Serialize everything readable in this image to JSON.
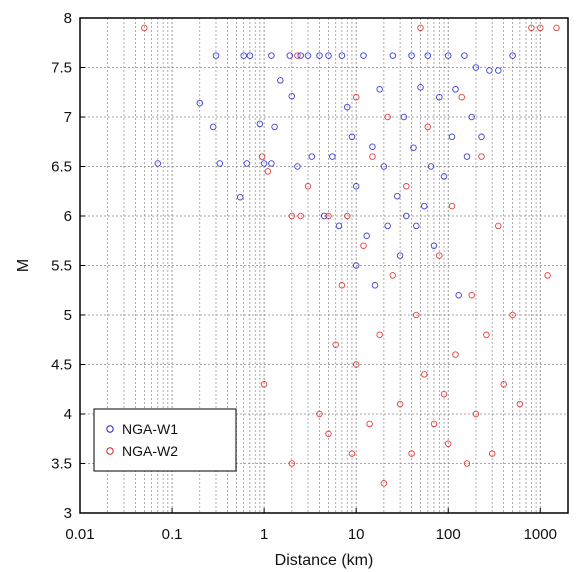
{
  "chart_data": {
    "type": "scatter",
    "xlabel": "Distance (km)",
    "ylabel": "M",
    "x_scale": "log",
    "xlim": [
      0.01,
      2000
    ],
    "ylim": [
      3,
      8
    ],
    "x_ticks": [
      {
        "value": 0.01,
        "label": "0.01"
      },
      {
        "value": 0.1,
        "label": "0.1"
      },
      {
        "value": 1,
        "label": "1"
      },
      {
        "value": 10,
        "label": "10"
      },
      {
        "value": 100,
        "label": "100"
      },
      {
        "value": 1000,
        "label": "1000"
      }
    ],
    "y_ticks": [
      {
        "value": 3,
        "label": "3"
      },
      {
        "value": 3.5,
        "label": "3.5"
      },
      {
        "value": 4,
        "label": "4"
      },
      {
        "value": 4.5,
        "label": "4.5"
      },
      {
        "value": 5,
        "label": "5"
      },
      {
        "value": 5.5,
        "label": "5.5"
      },
      {
        "value": 6,
        "label": "6"
      },
      {
        "value": 6.5,
        "label": "6.5"
      },
      {
        "value": 7,
        "label": "7"
      },
      {
        "value": 7.5,
        "label": "7.5"
      },
      {
        "value": 8,
        "label": "8"
      }
    ],
    "grid": true,
    "legend_position": "lower-left",
    "series": [
      {
        "name": "NGA-W1",
        "color": "#2020d0",
        "marker": "open-circle",
        "points": [
          [
            0.07,
            6.53
          ],
          [
            0.2,
            7.14
          ],
          [
            0.28,
            6.9
          ],
          [
            0.3,
            7.62
          ],
          [
            0.33,
            6.53
          ],
          [
            0.55,
            6.19
          ],
          [
            0.6,
            7.62
          ],
          [
            0.65,
            6.53
          ],
          [
            0.7,
            7.62
          ],
          [
            0.9,
            6.93
          ],
          [
            1.0,
            6.53
          ],
          [
            1.2,
            6.53
          ],
          [
            1.2,
            7.62
          ],
          [
            1.3,
            6.9
          ],
          [
            1.5,
            7.37
          ],
          [
            1.9,
            7.62
          ],
          [
            2.0,
            7.21
          ],
          [
            2.3,
            6.5
          ],
          [
            2.5,
            7.62
          ],
          [
            3.0,
            7.62
          ],
          [
            3.3,
            6.6
          ],
          [
            4.0,
            7.62
          ],
          [
            4.5,
            6.0
          ],
          [
            5.0,
            7.62
          ],
          [
            5.5,
            6.6
          ],
          [
            6.5,
            5.9
          ],
          [
            7.0,
            7.62
          ],
          [
            8.0,
            7.1
          ],
          [
            9.0,
            6.8
          ],
          [
            10.0,
            5.5
          ],
          [
            10.0,
            6.3
          ],
          [
            12.0,
            7.62
          ],
          [
            13.0,
            5.8
          ],
          [
            15.0,
            6.7
          ],
          [
            16.0,
            5.3
          ],
          [
            18.0,
            7.28
          ],
          [
            20.0,
            6.5
          ],
          [
            22.0,
            5.9
          ],
          [
            25.0,
            7.62
          ],
          [
            28.0,
            6.2
          ],
          [
            30.0,
            5.6
          ],
          [
            33.0,
            7.0
          ],
          [
            35.0,
            6.0
          ],
          [
            40.0,
            7.62
          ],
          [
            42.0,
            6.69
          ],
          [
            45.0,
            5.9
          ],
          [
            50.0,
            7.3
          ],
          [
            55.0,
            6.1
          ],
          [
            60.0,
            7.62
          ],
          [
            65.0,
            6.5
          ],
          [
            70.0,
            5.7
          ],
          [
            80.0,
            7.2
          ],
          [
            90.0,
            6.4
          ],
          [
            100.0,
            7.62
          ],
          [
            110.0,
            6.8
          ],
          [
            120.0,
            7.28
          ],
          [
            130.0,
            5.2
          ],
          [
            150.0,
            7.62
          ],
          [
            160.0,
            6.6
          ],
          [
            180.0,
            7.0
          ],
          [
            200.0,
            7.5
          ],
          [
            230.0,
            6.8
          ],
          [
            280.0,
            7.47
          ],
          [
            350.0,
            7.47
          ],
          [
            500.0,
            7.62
          ]
        ]
      },
      {
        "name": "NGA-W2",
        "color": "#e02020",
        "marker": "open-circle",
        "points": [
          [
            0.05,
            7.9
          ],
          [
            0.95,
            6.6
          ],
          [
            1.0,
            4.3
          ],
          [
            1.1,
            6.45
          ],
          [
            2.0,
            3.5
          ],
          [
            2.0,
            6.0
          ],
          [
            2.3,
            7.62
          ],
          [
            2.5,
            6.0
          ],
          [
            3.0,
            6.3
          ],
          [
            4.0,
            4.0
          ],
          [
            5.0,
            3.8
          ],
          [
            5.0,
            6.0
          ],
          [
            6.0,
            4.7
          ],
          [
            7.0,
            5.3
          ],
          [
            8.0,
            6.0
          ],
          [
            9.0,
            3.6
          ],
          [
            10.0,
            4.5
          ],
          [
            10.0,
            7.2
          ],
          [
            12.0,
            5.7
          ],
          [
            14.0,
            3.9
          ],
          [
            15.0,
            6.6
          ],
          [
            18.0,
            4.8
          ],
          [
            20.0,
            3.3
          ],
          [
            22.0,
            7.0
          ],
          [
            25.0,
            5.4
          ],
          [
            30.0,
            4.1
          ],
          [
            35.0,
            6.3
          ],
          [
            40.0,
            3.6
          ],
          [
            45.0,
            5.0
          ],
          [
            50.0,
            7.9
          ],
          [
            55.0,
            4.4
          ],
          [
            60.0,
            6.9
          ],
          [
            70.0,
            3.9
          ],
          [
            80.0,
            5.6
          ],
          [
            90.0,
            4.2
          ],
          [
            100.0,
            3.7
          ],
          [
            110.0,
            6.1
          ],
          [
            120.0,
            4.6
          ],
          [
            140.0,
            7.2
          ],
          [
            160.0,
            3.5
          ],
          [
            180.0,
            5.2
          ],
          [
            200.0,
            4.0
          ],
          [
            230.0,
            6.6
          ],
          [
            260.0,
            4.8
          ],
          [
            300.0,
            3.6
          ],
          [
            350.0,
            5.9
          ],
          [
            400.0,
            4.3
          ],
          [
            500.0,
            5.0
          ],
          [
            600.0,
            4.1
          ],
          [
            800.0,
            7.9
          ],
          [
            1000.0,
            7.9
          ],
          [
            1200.0,
            5.4
          ],
          [
            1500.0,
            7.9
          ]
        ]
      }
    ]
  }
}
